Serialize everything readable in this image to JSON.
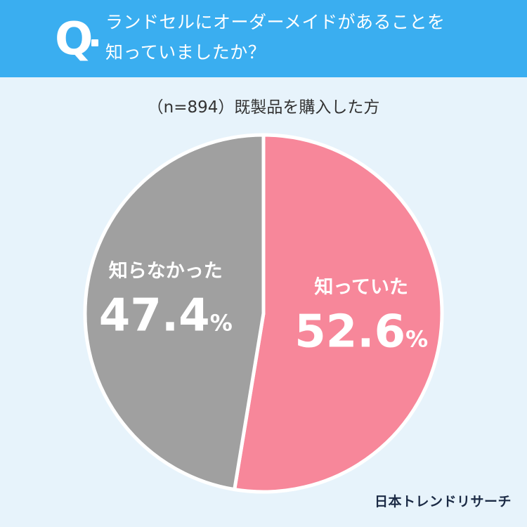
{
  "question": {
    "mark": "Q",
    "line1": "ランドセルにオーダーメイドがあることを",
    "line2": "知っていましたか？"
  },
  "subtitle": "（n=894）既製品を購入した方",
  "chart_data": {
    "type": "pie",
    "slices": [
      {
        "label": "知っていた",
        "value": 52.6,
        "display": "52.6",
        "unit": "%",
        "color": "#f7879a"
      },
      {
        "label": "知らなかった",
        "value": 47.4,
        "display": "47.4",
        "unit": "%",
        "color": "#a0a0a0"
      }
    ],
    "start": "12 o'clock",
    "direction": "clockwise"
  },
  "brand": "日本トレンドリサーチ"
}
